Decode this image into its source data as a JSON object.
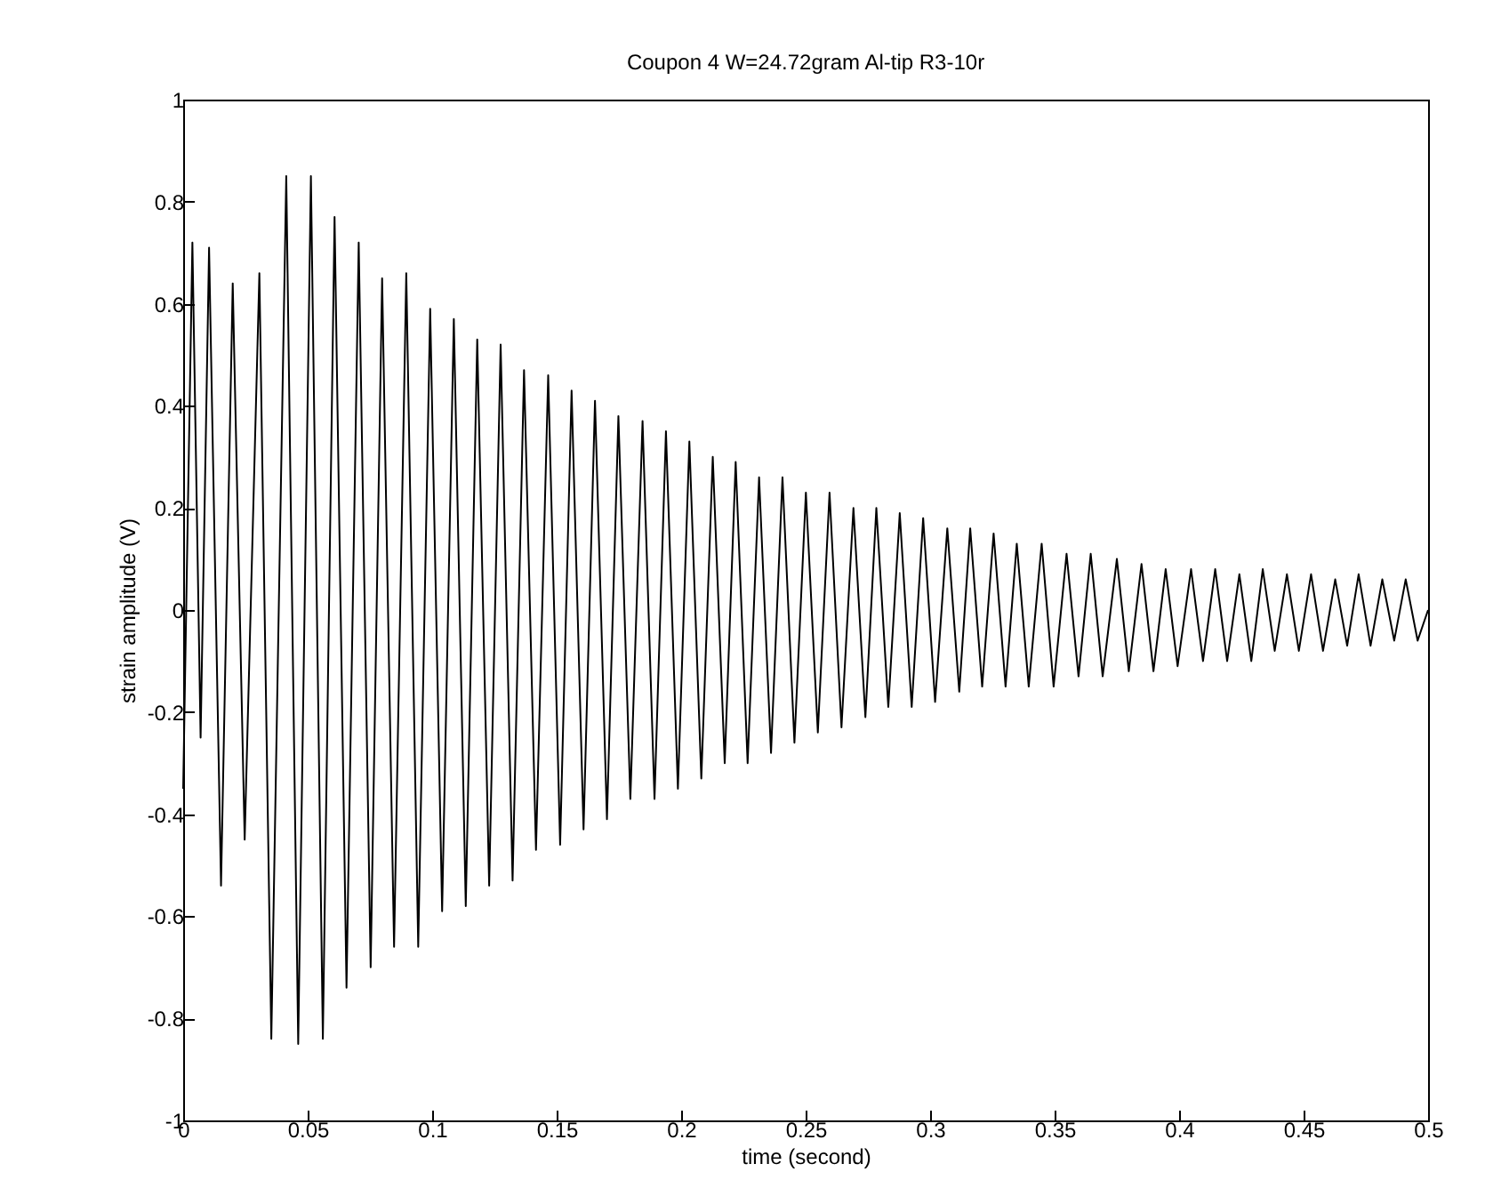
{
  "chart_data": {
    "type": "line",
    "title": "Coupon 4  W=24.72gram  Al-tip  R3-10r",
    "xlabel": "time (second)",
    "ylabel": "strain amplitude (V)",
    "x": [
      0,
      0.0037,
      0.007,
      0.0104,
      0.0152,
      0.0199,
      0.0247,
      0.0306,
      0.0354,
      0.0414,
      0.0462,
      0.0513,
      0.0561,
      0.0608,
      0.0656,
      0.0705,
      0.0753,
      0.0799,
      0.0847,
      0.0896,
      0.0944,
      0.0992,
      0.104,
      0.1087,
      0.1135,
      0.1181,
      0.1229,
      0.1275,
      0.1323,
      0.1369,
      0.1417,
      0.1466,
      0.1514,
      0.156,
      0.1608,
      0.1654,
      0.1702,
      0.1748,
      0.1796,
      0.1845,
      0.1893,
      0.1939,
      0.1987,
      0.2033,
      0.2081,
      0.2127,
      0.2175,
      0.2219,
      0.2267,
      0.2313,
      0.2361,
      0.2407,
      0.2455,
      0.2501,
      0.2549,
      0.2596,
      0.2644,
      0.2692,
      0.274,
      0.2784,
      0.2832,
      0.2878,
      0.2926,
      0.2972,
      0.302,
      0.3069,
      0.3117,
      0.3161,
      0.3209,
      0.3255,
      0.3303,
      0.3348,
      0.3396,
      0.3448,
      0.3496,
      0.3548,
      0.3596,
      0.3645,
      0.3693,
      0.375,
      0.3798,
      0.3849,
      0.3897,
      0.3946,
      0.3994,
      0.4048,
      0.4096,
      0.4145,
      0.4193,
      0.4242,
      0.429,
      0.4336,
      0.4384,
      0.4433,
      0.4481,
      0.453,
      0.4578,
      0.4627,
      0.4675,
      0.4721,
      0.4769,
      0.4816,
      0.4864,
      0.491,
      0.4958,
      0.5
    ],
    "series": [
      {
        "color": "#000000",
        "values": [
          -0.35,
          0.72,
          -0.25,
          0.71,
          -0.54,
          0.64,
          -0.45,
          0.66,
          -0.84,
          0.85,
          -0.85,
          0.85,
          -0.84,
          0.77,
          -0.74,
          0.72,
          -0.7,
          0.65,
          -0.66,
          0.66,
          -0.66,
          0.59,
          -0.59,
          0.57,
          -0.58,
          0.53,
          -0.54,
          0.52,
          -0.53,
          0.47,
          -0.47,
          0.46,
          -0.46,
          0.43,
          -0.43,
          0.41,
          -0.41,
          0.38,
          -0.37,
          0.37,
          -0.37,
          0.35,
          -0.35,
          0.33,
          -0.33,
          0.3,
          -0.3,
          0.29,
          -0.3,
          0.26,
          -0.28,
          0.26,
          -0.26,
          0.23,
          -0.24,
          0.23,
          -0.23,
          0.2,
          -0.21,
          0.2,
          -0.19,
          0.19,
          -0.19,
          0.18,
          -0.18,
          0.16,
          -0.16,
          0.16,
          -0.15,
          0.15,
          -0.15,
          0.13,
          -0.15,
          0.13,
          -0.15,
          0.11,
          -0.13,
          0.11,
          -0.13,
          0.1,
          -0.12,
          0.09,
          -0.12,
          0.08,
          -0.11,
          0.08,
          -0.1,
          0.08,
          -0.1,
          0.07,
          -0.1,
          0.08,
          -0.08,
          0.07,
          -0.08,
          0.07,
          -0.08,
          0.06,
          -0.07,
          0.07,
          -0.07,
          0.06,
          -0.06,
          0.06,
          -0.06,
          0
        ]
      }
    ],
    "xlim": [
      0,
      0.5
    ],
    "xticks": [
      0,
      0.05,
      0.1,
      0.15,
      0.2,
      0.25,
      0.3,
      0.35,
      0.4,
      0.45,
      0.5
    ],
    "ylim": [
      -1,
      1
    ],
    "yticks": [
      -1,
      -0.8,
      -0.6,
      -0.4,
      -0.2,
      0,
      0.2,
      0.4,
      0.6,
      0.8,
      1
    ],
    "grid": false,
    "legend": false,
    "line_style": "solid"
  }
}
